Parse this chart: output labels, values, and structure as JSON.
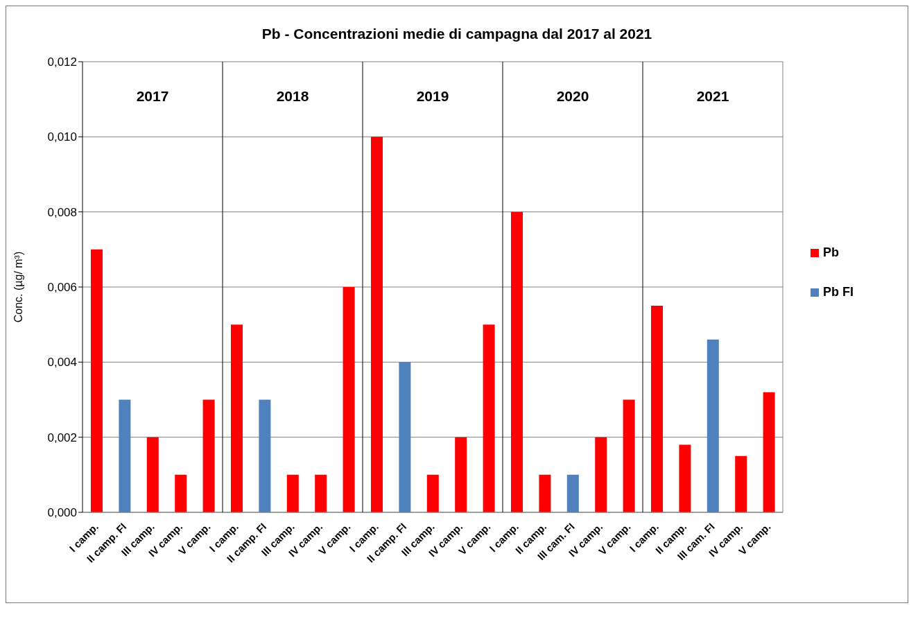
{
  "chart_data": {
    "type": "bar",
    "title": "Pb - Concentrazioni medie di campagna dal 2017 al 2021",
    "ylabel": "Conc. (µg/ m³)",
    "categories": [
      "I camp.",
      "II camp. FI",
      "III camp.",
      "IV camp.",
      "V camp.",
      "I camp.",
      "II camp. FI",
      "III camp.",
      "IV camp.",
      "V camp.",
      "I camp.",
      "II camp. FI",
      "III camp.",
      "IV camp.",
      "V camp.",
      "I camp.",
      "II camp.",
      "III cam. FI",
      "IV camp.",
      "V camp.",
      "I camp.",
      "II camp.",
      "III cam. FI",
      "IV camp.",
      "V camp."
    ],
    "series": [
      {
        "name": "Pb",
        "color": "#ff0000",
        "values": [
          0.007,
          null,
          0.002,
          0.001,
          0.003,
          0.005,
          null,
          0.001,
          0.001,
          0.006,
          0.01,
          null,
          0.001,
          0.002,
          0.005,
          0.008,
          0.001,
          null,
          0.002,
          0.003,
          0.0055,
          0.0018,
          null,
          0.0015,
          0.0032
        ]
      },
      {
        "name": "Pb FI",
        "color": "#4f81bd",
        "values": [
          null,
          0.003,
          null,
          null,
          null,
          null,
          0.003,
          null,
          null,
          null,
          null,
          0.004,
          null,
          null,
          null,
          null,
          null,
          0.001,
          null,
          null,
          null,
          null,
          0.0046,
          null,
          null
        ]
      }
    ],
    "stacked": true,
    "ylim": [
      0,
      0.012
    ],
    "yticks": [
      {
        "value": 0,
        "label": "0,000"
      },
      {
        "value": 0.002,
        "label": "0,002"
      },
      {
        "value": 0.004,
        "label": "0,004"
      },
      {
        "value": 0.006,
        "label": "0,006"
      },
      {
        "value": 0.008,
        "label": "0,008"
      },
      {
        "value": 0.01,
        "label": "0,010"
      },
      {
        "value": 0.012,
        "label": "0,012"
      }
    ],
    "grid": "y",
    "legend": "right",
    "annotations": [
      "2017",
      "2018",
      "2019",
      "2020",
      "2021"
    ]
  }
}
